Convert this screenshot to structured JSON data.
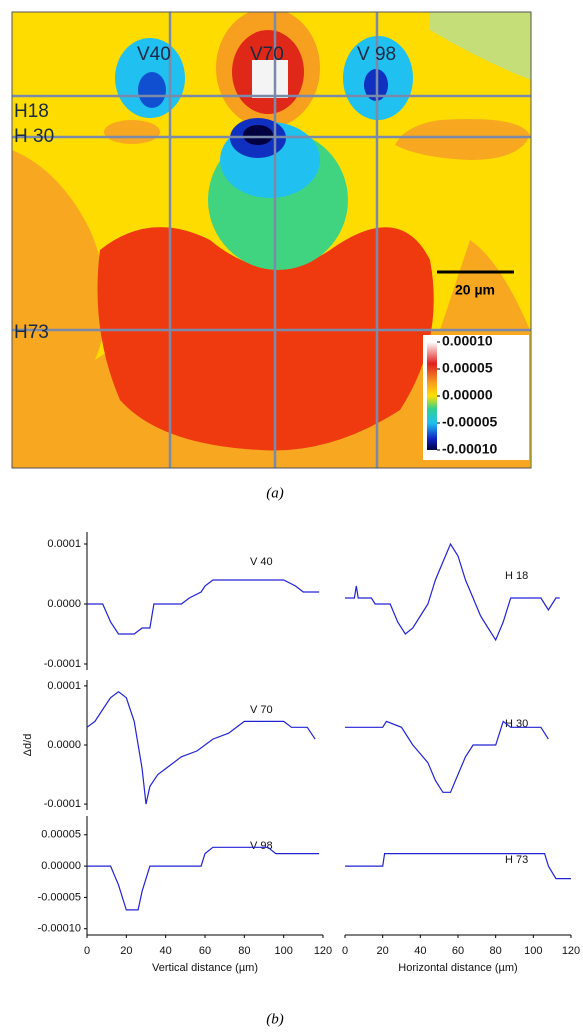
{
  "map": {
    "labels": [
      "V40",
      "V70",
      "V 98",
      "H18",
      "H 30",
      "H73"
    ],
    "scale_bar": "20 µm",
    "colorbar": {
      "lim": [
        -0.0001,
        0.0001
      ],
      "ticks": [
        {
          "value": 0.0001,
          "label": "0.00010"
        },
        {
          "value": 5e-05,
          "label": "0.00005"
        },
        {
          "value": 0,
          "label": "0.00000"
        },
        {
          "value": -5e-05,
          "label": "-0.00005"
        },
        {
          "value": -0.0001,
          "label": "-0.00010"
        }
      ]
    },
    "caption": "(a)"
  },
  "caption_b": "(b)",
  "chart_data": [
    {
      "type": "line",
      "annotation": "V 40",
      "color": "#2323d6",
      "xlim": [
        0,
        120
      ],
      "ylim": [
        -0.00011,
        0.00012
      ],
      "yticks": [
        {
          "value": 0.0001,
          "label": "0.0001"
        },
        {
          "value": 0,
          "label": "0.0000"
        },
        {
          "value": -0.0001,
          "label": "-0.0001"
        }
      ],
      "x": [
        0,
        8,
        12,
        16,
        24,
        28,
        32,
        34,
        48,
        52,
        58,
        60,
        64,
        80,
        100,
        106,
        110,
        118
      ],
      "values": [
        0,
        0,
        -3e-05,
        -5e-05,
        -5e-05,
        -4e-05,
        -4e-05,
        0,
        0,
        1e-05,
        2e-05,
        3e-05,
        4e-05,
        4e-05,
        4e-05,
        3e-05,
        2e-05,
        2e-05
      ]
    },
    {
      "type": "line",
      "annotation": "H 18",
      "color": "#2323d6",
      "xlim": [
        0,
        120
      ],
      "ylim": [
        -0.00011,
        0.00012
      ],
      "x": [
        0,
        5,
        6,
        7,
        14,
        16,
        24,
        28,
        32,
        36,
        40,
        44,
        48,
        52,
        56,
        60,
        64,
        68,
        72,
        76,
        80,
        84,
        88,
        100,
        104,
        108,
        112,
        114
      ],
      "values": [
        1e-05,
        1e-05,
        3e-05,
        1e-05,
        1e-05,
        0,
        0,
        -3e-05,
        -5e-05,
        -4e-05,
        -2e-05,
        0,
        4e-05,
        7e-05,
        0.0001,
        8e-05,
        4e-05,
        1e-05,
        -2e-05,
        -4e-05,
        -6e-05,
        -3e-05,
        1e-05,
        1e-05,
        1e-05,
        -1e-05,
        1e-05,
        1e-05
      ]
    },
    {
      "type": "line",
      "annotation": "V 70",
      "ylabel": "Δd/d",
      "color": "#2323d6",
      "xlim": [
        0,
        120
      ],
      "ylim": [
        -0.00011,
        0.00011
      ],
      "yticks": [
        {
          "value": 0.0001,
          "label": "0.0001"
        },
        {
          "value": 0,
          "label": "0.0000"
        },
        {
          "value": -0.0001,
          "label": "-0.0001"
        }
      ],
      "x": [
        0,
        4,
        8,
        12,
        16,
        20,
        24,
        28,
        30,
        32,
        36,
        40,
        48,
        56,
        64,
        72,
        80,
        100,
        104,
        112,
        116
      ],
      "values": [
        3e-05,
        4e-05,
        6e-05,
        8e-05,
        9e-05,
        8e-05,
        4e-05,
        -4e-05,
        -0.0001,
        -7e-05,
        -5e-05,
        -4e-05,
        -2e-05,
        -1e-05,
        1e-05,
        2e-05,
        4e-05,
        4e-05,
        3e-05,
        3e-05,
        1e-05
      ]
    },
    {
      "type": "line",
      "annotation": "H 30",
      "color": "#2323d6",
      "xlim": [
        0,
        120
      ],
      "ylim": [
        -0.00011,
        0.00011
      ],
      "x": [
        0,
        20,
        22,
        30,
        36,
        44,
        48,
        52,
        56,
        60,
        64,
        68,
        80,
        84,
        88,
        104,
        108
      ],
      "values": [
        3e-05,
        3e-05,
        4e-05,
        3e-05,
        0,
        -3e-05,
        -6e-05,
        -8e-05,
        -8e-05,
        -5e-05,
        -2e-05,
        0,
        0,
        4e-05,
        3e-05,
        3e-05,
        1e-05
      ]
    },
    {
      "type": "line",
      "annotation": "V 98",
      "xlabel": "Vertical distance (µm)",
      "color": "#2323d6",
      "xlim": [
        0,
        120
      ],
      "ylim": [
        -0.00011,
        8e-05
      ],
      "xticks": [
        0,
        20,
        40,
        60,
        80,
        100,
        120
      ],
      "yticks": [
        {
          "value": 5e-05,
          "label": "0.00005"
        },
        {
          "value": 0,
          "label": "0.00000"
        },
        {
          "value": -5e-05,
          "label": "-0.00005"
        },
        {
          "value": -0.0001,
          "label": "-0.00010"
        }
      ],
      "x": [
        0,
        12,
        16,
        20,
        26,
        28,
        32,
        58,
        60,
        64,
        72,
        92,
        96,
        118
      ],
      "values": [
        0,
        0,
        -3e-05,
        -7e-05,
        -7e-05,
        -4e-05,
        0,
        0,
        2e-05,
        3e-05,
        3e-05,
        3e-05,
        2e-05,
        2e-05
      ]
    },
    {
      "type": "line",
      "annotation": "H 73",
      "xlabel": "Horizontal distance (µm)",
      "color": "#2323d6",
      "xlim": [
        0,
        120
      ],
      "ylim": [
        -0.00011,
        8e-05
      ],
      "xticks": [
        0,
        20,
        40,
        60,
        80,
        100,
        120
      ],
      "x": [
        0,
        20,
        21,
        26,
        28,
        106,
        108,
        112,
        116,
        120
      ],
      "values": [
        0,
        0,
        2e-05,
        2e-05,
        2e-05,
        2e-05,
        0,
        -2e-05,
        -2e-05,
        -2e-05
      ]
    }
  ]
}
